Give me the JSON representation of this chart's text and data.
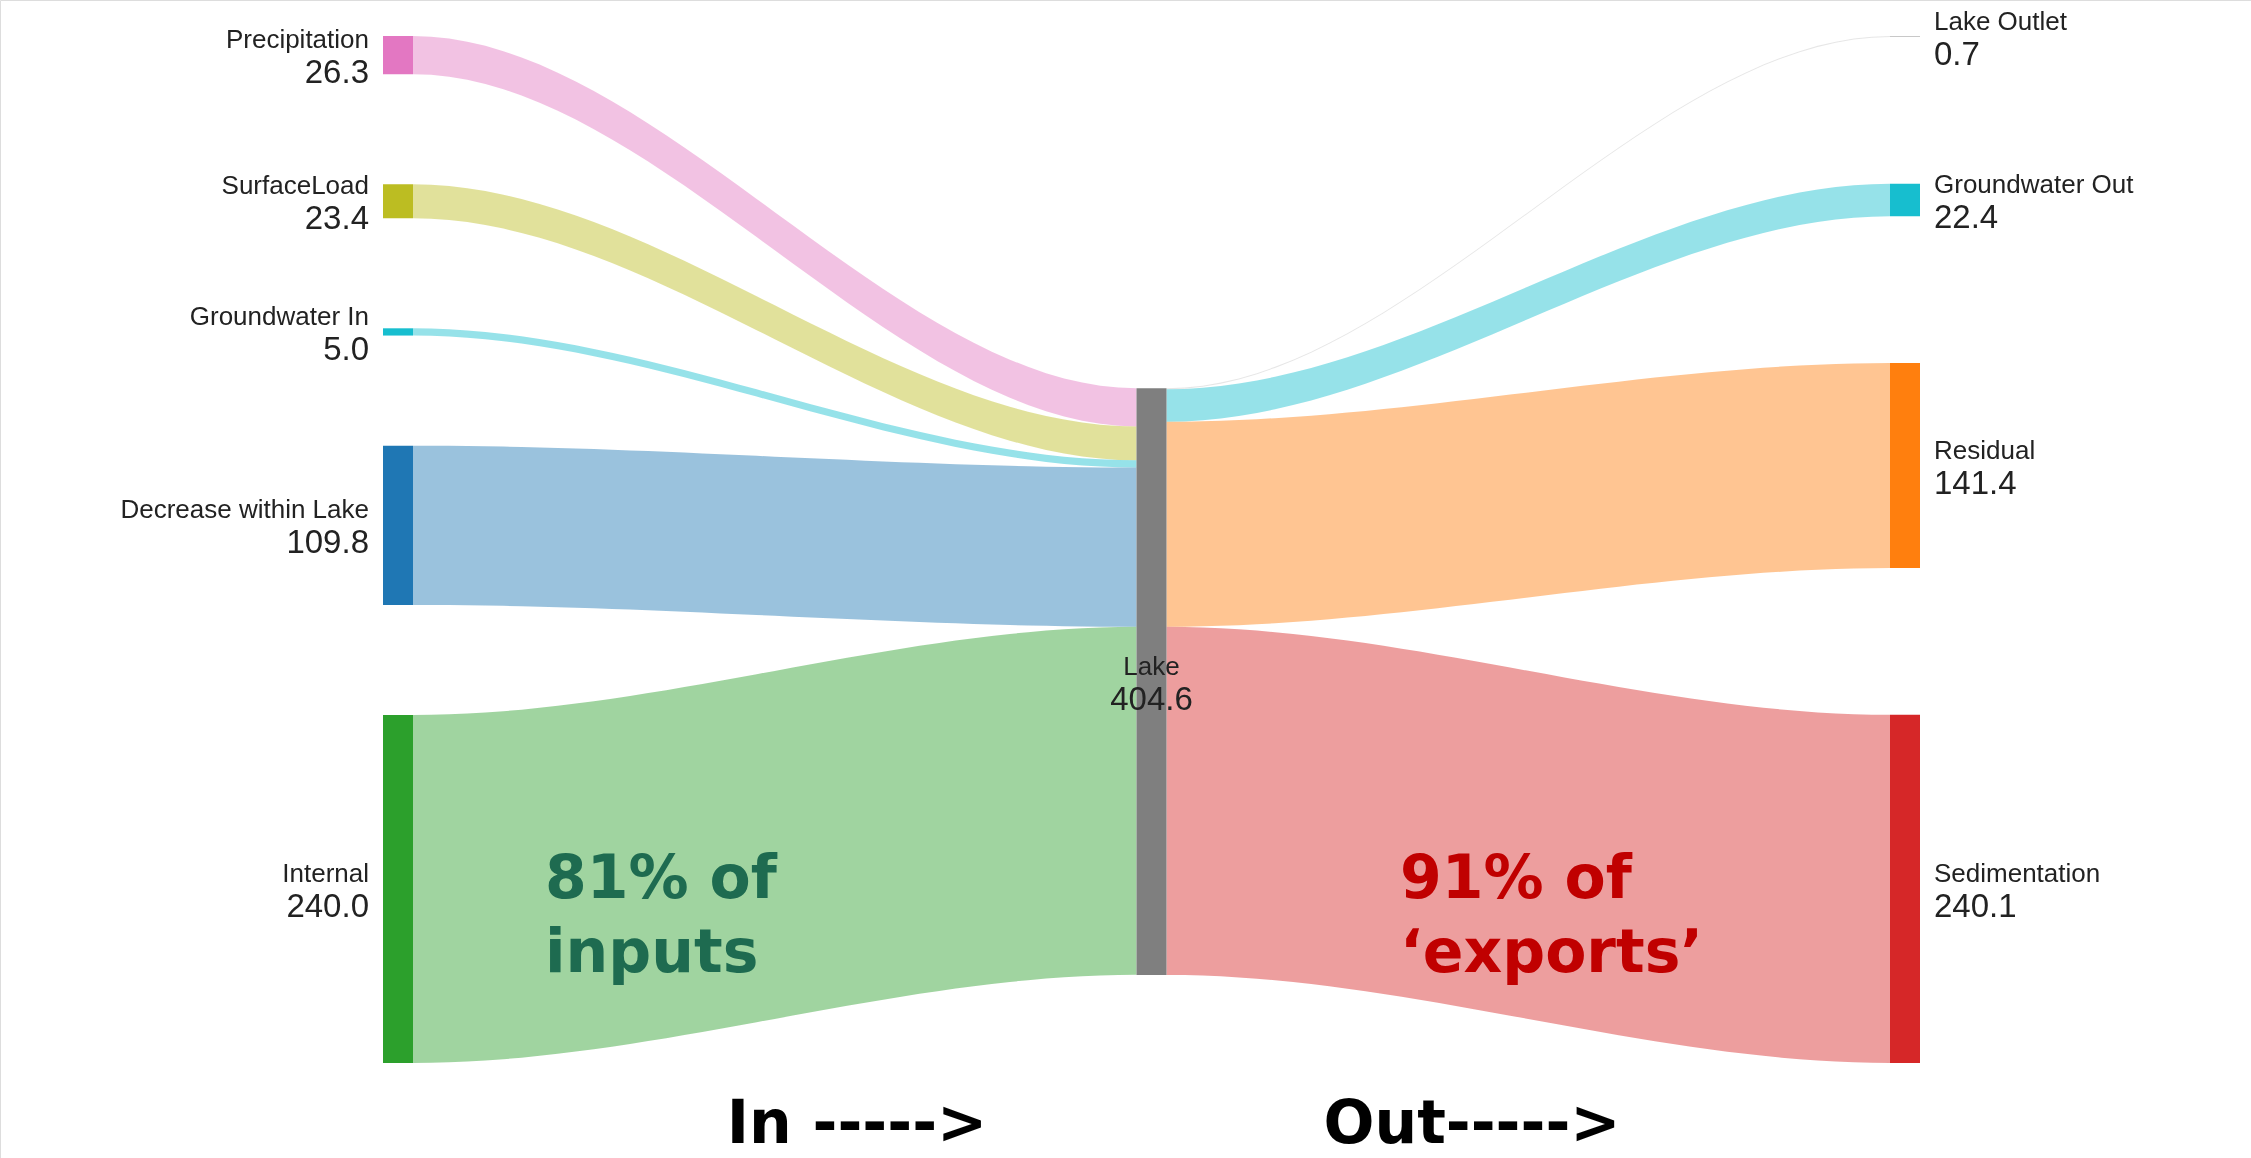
{
  "chart_data": {
    "type": "other",
    "categories": [
      "Precipitation",
      "SurfaceLoad",
      "Groundwater In",
      "Decrease within Lake",
      "Internal",
      "Lake",
      "Lake Outlet",
      "Groundwater Out",
      "Residual",
      "Sedimentation"
    ],
    "values": [
      26.3,
      23.4,
      5.0,
      109.8,
      240.0,
      404.6,
      0.7,
      22.4,
      141.4,
      240.1
    ],
    "value_labels": [
      "26.3",
      "23.4",
      "5.0",
      "109.8",
      "240.0",
      "404.6",
      "0.7",
      "22.4",
      "141.4",
      "240.1"
    ],
    "colors": [
      "#e377c2",
      "#bcbd22",
      "#17becf",
      "#1f77b4",
      "#2ca02c",
      "#7f7f7f",
      "#c8c8c8",
      "#17becf",
      "#ff7f0e",
      "#d62728"
    ],
    "annotations": [
      "81% of\ninputs",
      "91% of\n‘exports’",
      "In ----->",
      "Out----->"
    ]
  }
}
